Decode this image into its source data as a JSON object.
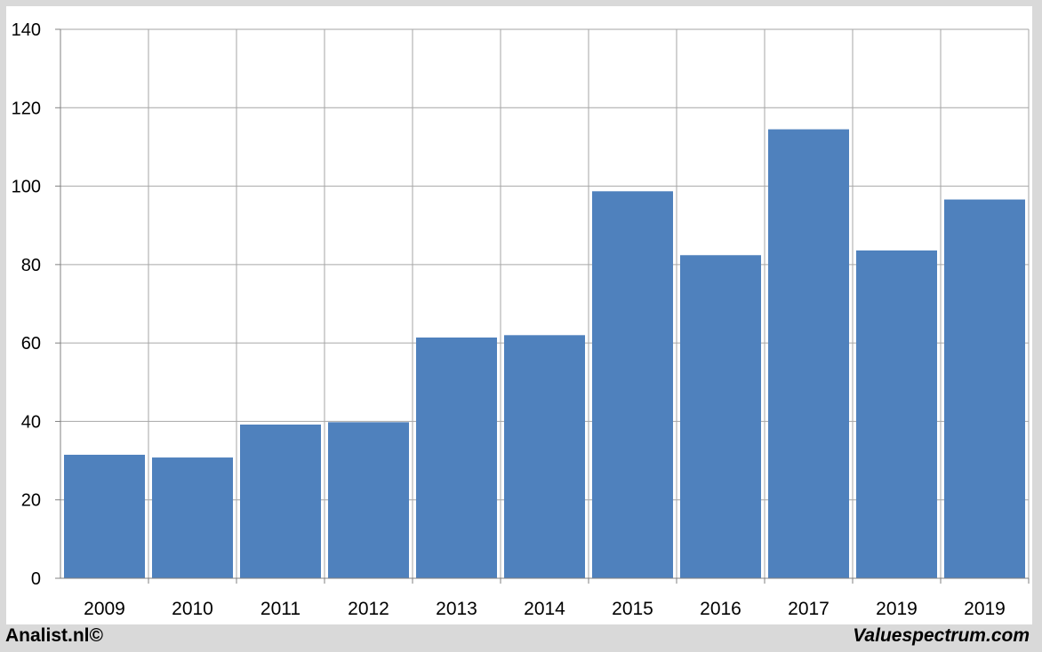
{
  "chart_data": {
    "type": "bar",
    "categories": [
      "2009",
      "2010",
      "2011",
      "2012",
      "2013",
      "2014",
      "2015",
      "2016",
      "2017",
      "2019",
      "2019"
    ],
    "values": [
      31.5,
      30.8,
      39.2,
      39.8,
      61.4,
      62.0,
      98.7,
      82.4,
      114.5,
      83.6,
      96.6
    ],
    "title": "",
    "xlabel": "",
    "ylabel": "",
    "ylim": [
      0,
      140
    ],
    "yticks": [
      "0",
      "20",
      "40",
      "60",
      "80",
      "100",
      "120",
      "140"
    ],
    "grid": true,
    "bar_color": "#4f81bd"
  },
  "footer": {
    "left_text": "Analist.nl©",
    "right_text": "Valuespectrum.com"
  }
}
